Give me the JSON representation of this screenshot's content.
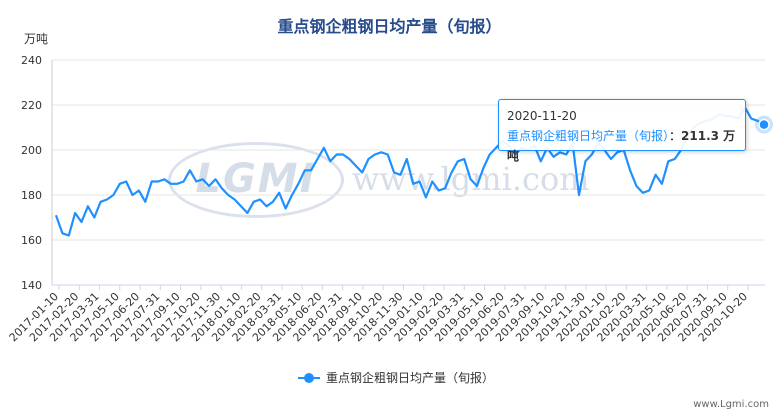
{
  "chart_data": {
    "type": "line",
    "title": "重点钢企粗钢日均产量（旬报）",
    "y_unit": "万吨",
    "ylim": [
      140,
      240
    ],
    "yticks": [
      140,
      160,
      180,
      200,
      220,
      240
    ],
    "x_tick_labels": [
      "2017-01-10",
      "2017-02-20",
      "2017-03-31",
      "2017-05-10",
      "2017-06-20",
      "2017-07-31",
      "2017-09-10",
      "2017-10-20",
      "2017-11-30",
      "2018-01-10",
      "2018-02-20",
      "2018-03-31",
      "2018-05-10",
      "2018-06-20",
      "2018-07-31",
      "2018-09-10",
      "2018-10-20",
      "2018-11-30",
      "2019-01-10",
      "2019-02-20",
      "2019-03-31",
      "2019-05-10",
      "2019-06-20",
      "2019-07-31",
      "2019-09-10",
      "2019-10-20",
      "2019-11-30",
      "2020-01-10",
      "2020-02-20",
      "2020-03-31",
      "2020-05-10",
      "2020-06-20",
      "2020-07-31",
      "2020-09-10",
      "2020-10-20"
    ],
    "legend_position": "bottom-center",
    "grid": "horizontal",
    "series": [
      {
        "name": "重点钢企粗钢日均产量（旬报）",
        "color": "#1e90ff",
        "values": [
          171,
          163,
          162,
          172,
          168,
          175,
          170,
          177,
          178,
          180,
          185,
          186,
          180,
          182,
          177,
          186,
          186,
          187,
          185,
          185,
          186,
          191,
          186,
          187,
          184,
          187,
          183,
          180,
          178,
          175,
          172,
          177,
          178,
          175,
          177,
          181,
          174,
          180,
          185,
          191,
          191,
          196,
          201,
          195,
          198,
          198,
          196,
          193,
          190,
          196,
          198,
          199,
          198,
          190,
          189,
          196,
          185,
          186,
          179,
          186,
          182,
          183,
          190,
          195,
          196,
          187,
          184,
          192,
          198,
          201,
          204,
          202,
          198,
          201,
          200,
          202,
          195,
          201,
          197,
          199,
          198,
          203,
          180,
          195,
          198,
          203,
          200,
          196,
          199,
          200,
          191,
          184,
          181,
          182,
          189,
          185,
          195,
          196,
          200,
          207,
          210,
          212,
          213,
          214,
          216,
          215,
          215,
          214,
          219,
          214,
          213,
          211.3
        ]
      }
    ],
    "tooltip": {
      "date": "2020-11-20",
      "series_name": "重点钢企粗钢日均产量（旬报）",
      "value_text": "211.3 万吨"
    },
    "watermark": {
      "logo_text": "LGMI",
      "url_text": "www.lgmi.com"
    },
    "credit": "www.Lgmi.com"
  }
}
